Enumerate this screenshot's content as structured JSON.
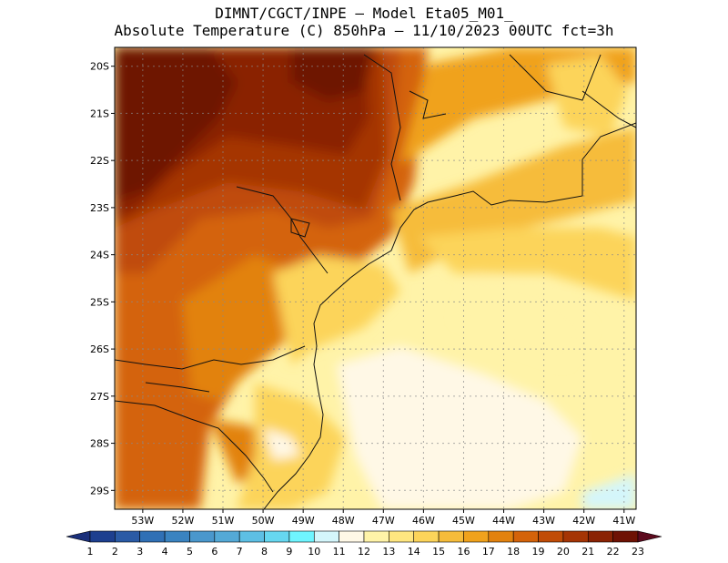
{
  "title": {
    "line1": "DIMNT/CGCT/INPE –  Model Eta05_M01_",
    "line2": "Absolute Temperature (C) 850hPa –  11/10/2023 00UTC fct=3h"
  },
  "map": {
    "lat_range": [
      -29.4,
      -19.6
    ],
    "lon_range": [
      -53.7,
      -40.7
    ],
    "lat_ticks": [
      "20S",
      "21S",
      "22S",
      "23S",
      "24S",
      "25S",
      "26S",
      "27S",
      "28S",
      "29S"
    ],
    "lat_values": [
      -20,
      -21,
      -22,
      -23,
      -24,
      -25,
      -26,
      -27,
      -28,
      -29
    ],
    "lon_ticks": [
      "53W",
      "52W",
      "51W",
      "50W",
      "49W",
      "48W",
      "47W",
      "46W",
      "45W",
      "44W",
      "43W",
      "42W",
      "41W"
    ],
    "lon_values": [
      -53,
      -52,
      -51,
      -50,
      -49,
      -48,
      -47,
      -46,
      -45,
      -44,
      -43,
      -42,
      -41
    ],
    "gridlines": "dotted"
  },
  "colorbar": {
    "labels": [
      "1",
      "2",
      "3",
      "4",
      "5",
      "6",
      "7",
      "8",
      "9",
      "10",
      "11",
      "12",
      "13",
      "14",
      "15",
      "16",
      "17",
      "18",
      "19",
      "20",
      "21",
      "22",
      "23"
    ],
    "colors": [
      "#1d3f8f",
      "#2a5aa5",
      "#3070b5",
      "#3a83c0",
      "#4a97cc",
      "#54a9d6",
      "#5dbfe4",
      "#66d7f0",
      "#6ff5ff",
      "#d4f6fb",
      "#fff8e6",
      "#fff3a8",
      "#ffe680",
      "#fcd45a",
      "#f6bc3b",
      "#f0a21c",
      "#e2820f",
      "#d4630a",
      "#c04c07",
      "#a53505",
      "#8a2304",
      "#6e1204"
    ],
    "low_arrow_color": "#1a2f7a",
    "high_arrow_color": "#5c0a1e"
  }
}
